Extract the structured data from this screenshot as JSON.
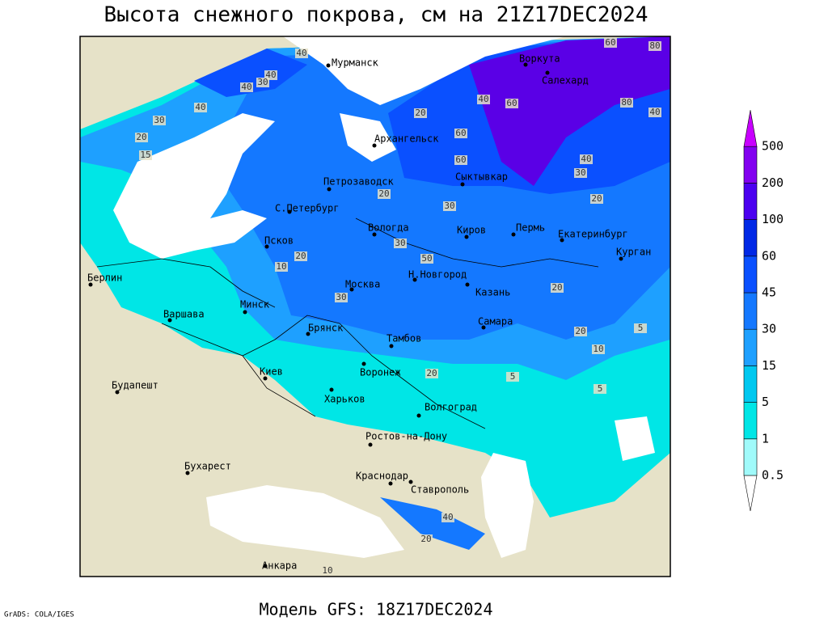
{
  "title": "Высота снежного покрова, см на 21Z17DEC2024",
  "footer": {
    "model": "Модель GFS: 18Z17DEC2024",
    "credit": "GrADS: COLA/IGES"
  },
  "legend": {
    "levels": [
      "0.5",
      "1",
      "5",
      "15",
      "30",
      "45",
      "60",
      "100",
      "200",
      "500"
    ],
    "colors": [
      "#ffffff",
      "#a0fafa",
      "#00e6e6",
      "#00c8f0",
      "#1ea0ff",
      "#1478ff",
      "#0a50ff",
      "#0028e6",
      "#4b00f0",
      "#8200f0",
      "#c800ff"
    ]
  },
  "cities": [
    "Мурманск",
    "Архангельск",
    "Воркута",
    "Салехард",
    "Сыктывкар",
    "Петрозаводск",
    "С.Петербург",
    "Вологда",
    "Киров",
    "Пермь",
    "Екатеринбург",
    "Курган",
    "Псков",
    "Москва",
    "Н.Новгород",
    "Казань",
    "Самара",
    "Берлин",
    "Варшава",
    "Минск",
    "Брянск",
    "Тамбов",
    "Киев",
    "Воронеж",
    "Будапешт",
    "Харьков",
    "Волгоград",
    "Ростов-на-Дону",
    "Бухарест",
    "Краснодар",
    "Ставрополь",
    "Анкара"
  ],
  "contour_labels": [
    "40",
    "60",
    "80",
    "40",
    "30",
    "40",
    "40",
    "30",
    "20",
    "15",
    "20",
    "40",
    "60",
    "80",
    "40",
    "60",
    "60",
    "40",
    "30",
    "20",
    "20",
    "30",
    "30",
    "50",
    "20",
    "10",
    "30",
    "20",
    "20",
    "10",
    "5",
    "5",
    "5",
    "20",
    "20",
    "10",
    "40"
  ]
}
